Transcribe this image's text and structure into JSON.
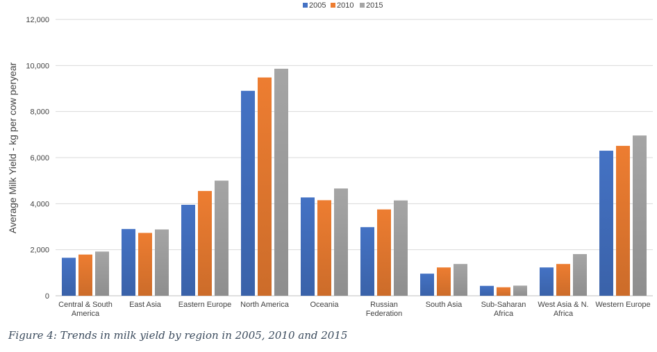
{
  "caption": "Figure 4: Trends in milk yield by region in 2005, 2010 and 2015",
  "chart_data": {
    "type": "bar",
    "ylabel": "Average Milk Yield - kg per cow peryear",
    "ylim": [
      0,
      12000
    ],
    "yticks": [
      "0",
      "2,000",
      "4,000",
      "6,000",
      "8,000",
      "10,000",
      "12,000"
    ],
    "ytick_values": [
      0,
      2000,
      4000,
      6000,
      8000,
      10000,
      12000
    ],
    "grid": true,
    "legend": "top-center",
    "categories": [
      [
        "Central & South",
        "America"
      ],
      [
        "East Asia"
      ],
      [
        "Eastern Europe"
      ],
      [
        "North America"
      ],
      [
        "Oceania"
      ],
      [
        "Russian",
        "Federation"
      ],
      [
        "South Asia"
      ],
      [
        "Sub-Saharan",
        "Africa"
      ],
      [
        "West Asia & N.",
        "Africa"
      ],
      [
        "Western Europe"
      ]
    ],
    "series": [
      {
        "name": "2005",
        "color": "#4472c4",
        "values": [
          1650,
          2900,
          3950,
          8900,
          4270,
          2980,
          960,
          430,
          1230,
          6300
        ]
      },
      {
        "name": "2010",
        "color": "#ed7d31",
        "values": [
          1790,
          2730,
          4550,
          9480,
          4150,
          3750,
          1230,
          370,
          1380,
          6510
        ]
      },
      {
        "name": "2015",
        "color": "#a5a5a5",
        "values": [
          1920,
          2880,
          5000,
          9860,
          4660,
          4140,
          1380,
          440,
          1810,
          6960
        ]
      }
    ]
  }
}
